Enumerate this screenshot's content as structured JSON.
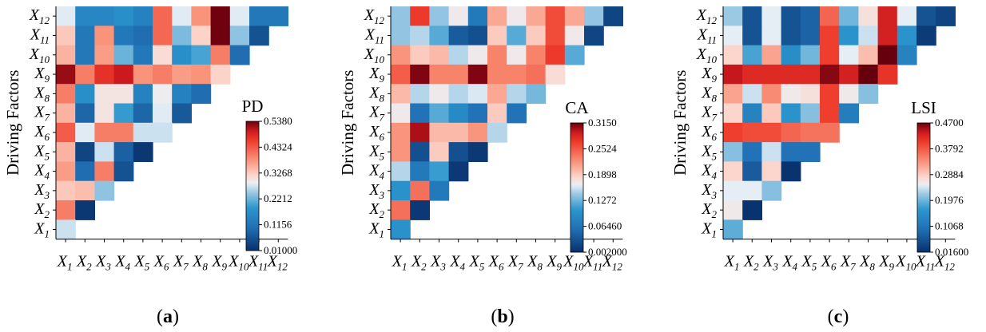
{
  "chart_data": [
    {
      "type": "heatmap",
      "panel_label": "a",
      "metric": "PD",
      "ylabel": "Driving Factors",
      "x_labels": [
        {
          "base": "X",
          "sub": "1"
        },
        {
          "base": "X",
          "sub": "2"
        },
        {
          "base": "X",
          "sub": "3"
        },
        {
          "base": "X",
          "sub": "4"
        },
        {
          "base": "X",
          "sub": "5"
        },
        {
          "base": "X",
          "sub": "6"
        },
        {
          "base": "X",
          "sub": "7"
        },
        {
          "base": "X",
          "sub": "8"
        },
        {
          "base": "X",
          "sub": "9"
        },
        {
          "base": "X",
          "sub": "10"
        },
        {
          "base": "X",
          "sub": "11"
        },
        {
          "base": "X",
          "sub": "12"
        }
      ],
      "y_labels": [
        {
          "base": "X",
          "sub": "12"
        },
        {
          "base": "X",
          "sub": "11"
        },
        {
          "base": "X",
          "sub": "10"
        },
        {
          "base": "X",
          "sub": "9"
        },
        {
          "base": "X",
          "sub": "8"
        },
        {
          "base": "X",
          "sub": "7"
        },
        {
          "base": "X",
          "sub": "6"
        },
        {
          "base": "X",
          "sub": "5"
        },
        {
          "base": "X",
          "sub": "4"
        },
        {
          "base": "X",
          "sub": "3"
        },
        {
          "base": "X",
          "sub": "2"
        },
        {
          "base": "X",
          "sub": "1"
        }
      ],
      "colorbar": {
        "min": 0.01,
        "max": 0.538,
        "ticks": [
          "0.5380",
          "0.4324",
          "0.3268",
          "0.2212",
          "0.1156",
          "0.01000"
        ]
      },
      "values": [
        [
          0.28,
          0.15,
          0.15,
          0.17,
          0.14,
          0.42,
          0.28,
          0.38,
          0.535,
          0.28,
          0.12,
          0.12
        ],
        [
          0.33,
          0.12,
          0.38,
          0.12,
          0.1,
          0.42,
          0.23,
          0.32,
          0.535,
          0.24,
          0.06
        ],
        [
          0.35,
          0.12,
          0.37,
          0.22,
          0.12,
          0.31,
          0.17,
          0.2,
          0.4,
          0.1
        ],
        [
          0.52,
          0.4,
          0.47,
          0.5,
          0.38,
          0.4,
          0.37,
          0.38,
          0.32
        ],
        [
          0.4,
          0.17,
          0.3,
          0.3,
          0.14,
          0.29,
          0.14,
          0.1
        ],
        [
          0.35,
          0.09,
          0.3,
          0.19,
          0.09,
          0.28,
          0.07
        ],
        [
          0.43,
          0.28,
          0.4,
          0.4,
          0.27,
          0.27
        ],
        [
          0.35,
          0.04,
          0.27,
          0.08,
          0.02
        ],
        [
          0.37,
          0.1,
          0.4,
          0.06
        ],
        [
          0.33,
          0.34,
          0.24
        ],
        [
          0.4,
          0.02
        ],
        [
          0.27
        ]
      ]
    },
    {
      "type": "heatmap",
      "panel_label": "b",
      "metric": "CA",
      "ylabel": "Driving Factors",
      "x_labels": [
        {
          "base": "X",
          "sub": "1"
        },
        {
          "base": "X",
          "sub": "2"
        },
        {
          "base": "X",
          "sub": "3"
        },
        {
          "base": "X",
          "sub": "4"
        },
        {
          "base": "X",
          "sub": "5"
        },
        {
          "base": "X",
          "sub": "6"
        },
        {
          "base": "X",
          "sub": "7"
        },
        {
          "base": "X",
          "sub": "8"
        },
        {
          "base": "X",
          "sub": "9"
        },
        {
          "base": "X",
          "sub": "10"
        },
        {
          "base": "X",
          "sub": "11"
        },
        {
          "base": "X",
          "sub": "12"
        }
      ],
      "y_labels": [
        {
          "base": "X",
          "sub": "12"
        },
        {
          "base": "X",
          "sub": "11"
        },
        {
          "base": "X",
          "sub": "10"
        },
        {
          "base": "X",
          "sub": "9"
        },
        {
          "base": "X",
          "sub": "8"
        },
        {
          "base": "X",
          "sub": "7"
        },
        {
          "base": "X",
          "sub": "6"
        },
        {
          "base": "X",
          "sub": "5"
        },
        {
          "base": "X",
          "sub": "4"
        },
        {
          "base": "X",
          "sub": "3"
        },
        {
          "base": "X",
          "sub": "2"
        },
        {
          "base": "X",
          "sub": "1"
        }
      ],
      "colorbar": {
        "min": 0.002,
        "max": 0.315,
        "ticks": [
          "0.3150",
          "0.2524",
          "0.1898",
          "0.1272",
          "0.06460",
          "0.002000"
        ]
      },
      "values": [
        [
          0.14,
          0.27,
          0.14,
          0.17,
          0.07,
          0.21,
          0.17,
          0.21,
          0.26,
          0.21,
          0.14,
          0.02
        ],
        [
          0.14,
          0.15,
          0.12,
          0.04,
          0.03,
          0.19,
          0.12,
          0.19,
          0.26,
          0.17,
          0.02
        ],
        [
          0.22,
          0.19,
          0.2,
          0.15,
          0.17,
          0.23,
          0.17,
          0.23,
          0.27,
          0.12
        ],
        [
          0.25,
          0.31,
          0.23,
          0.23,
          0.31,
          0.23,
          0.23,
          0.24,
          0.18
        ],
        [
          0.2,
          0.15,
          0.17,
          0.15,
          0.16,
          0.21,
          0.15,
          0.13
        ],
        [
          0.17,
          0.06,
          0.12,
          0.09,
          0.06,
          0.19,
          0.06
        ],
        [
          0.22,
          0.3,
          0.2,
          0.2,
          0.22,
          0.15
        ],
        [
          0.22,
          0.03,
          0.19,
          0.03,
          0.01
        ],
        [
          0.15,
          0.07,
          0.11,
          0.01
        ],
        [
          0.1,
          0.24,
          0.07
        ],
        [
          0.24,
          0.01
        ],
        [
          0.1
        ]
      ]
    },
    {
      "type": "heatmap",
      "panel_label": "c",
      "metric": "LSI",
      "ylabel": "Driving Factors",
      "x_labels": [
        {
          "base": "X",
          "sub": "1"
        },
        {
          "base": "X",
          "sub": "2"
        },
        {
          "base": "X",
          "sub": "3"
        },
        {
          "base": "X",
          "sub": "4"
        },
        {
          "base": "X",
          "sub": "5"
        },
        {
          "base": "X",
          "sub": "6"
        },
        {
          "base": "X",
          "sub": "7"
        },
        {
          "base": "X",
          "sub": "8"
        },
        {
          "base": "X",
          "sub": "9"
        },
        {
          "base": "X",
          "sub": "10"
        },
        {
          "base": "X",
          "sub": "11"
        },
        {
          "base": "X",
          "sub": "12"
        }
      ],
      "y_labels": [
        {
          "base": "X",
          "sub": "12"
        },
        {
          "base": "X",
          "sub": "11"
        },
        {
          "base": "X",
          "sub": "10"
        },
        {
          "base": "X",
          "sub": "9"
        },
        {
          "base": "X",
          "sub": "8"
        },
        {
          "base": "X",
          "sub": "7"
        },
        {
          "base": "X",
          "sub": "6"
        },
        {
          "base": "X",
          "sub": "5"
        },
        {
          "base": "X",
          "sub": "4"
        },
        {
          "base": "X",
          "sub": "3"
        },
        {
          "base": "X",
          "sub": "2"
        },
        {
          "base": "X",
          "sub": "1"
        }
      ],
      "colorbar": {
        "min": 0.016,
        "max": 0.47,
        "ticks": [
          "0.4700",
          "0.3792",
          "0.2884",
          "0.1976",
          "0.1068",
          "0.01600"
        ]
      },
      "values": [
        [
          0.22,
          0.06,
          0.25,
          0.06,
          0.08,
          0.37,
          0.2,
          0.27,
          0.43,
          0.25,
          0.06,
          0.04
        ],
        [
          0.25,
          0.06,
          0.25,
          0.06,
          0.08,
          0.4,
          0.16,
          0.24,
          0.43,
          0.16,
          0.03
        ],
        [
          0.28,
          0.18,
          0.32,
          0.15,
          0.2,
          0.4,
          0.25,
          0.3,
          0.47,
          0.13
        ],
        [
          0.44,
          0.42,
          0.42,
          0.42,
          0.42,
          0.46,
          0.43,
          0.47,
          0.41
        ],
        [
          0.32,
          0.24,
          0.34,
          0.26,
          0.27,
          0.4,
          0.26,
          0.21
        ],
        [
          0.28,
          0.13,
          0.29,
          0.16,
          0.21,
          0.4,
          0.12
        ],
        [
          0.4,
          0.39,
          0.39,
          0.37,
          0.36,
          0.36
        ],
        [
          0.21,
          0.1,
          0.24,
          0.1,
          0.1
        ],
        [
          0.28,
          0.07,
          0.28,
          0.02
        ],
        [
          0.25,
          0.25,
          0.21
        ],
        [
          0.26,
          0.02
        ],
        [
          0.19
        ]
      ]
    }
  ]
}
